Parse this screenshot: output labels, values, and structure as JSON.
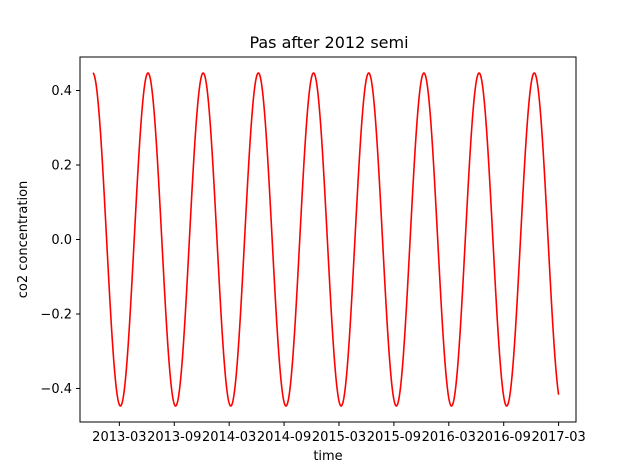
{
  "chart_data": {
    "type": "line",
    "title": "Pas after 2012 semi",
    "xlabel": "time",
    "ylabel": "co2 concentration",
    "x_tick_labels": [
      "2013-03",
      "2013-09",
      "2014-03",
      "2014-09",
      "2015-03",
      "2015-09",
      "2016-03",
      "2016-09",
      "2017-03"
    ],
    "y_tick_labels": [
      "−0.4",
      "−0.2",
      "0.0",
      "0.2",
      "0.4"
    ],
    "y_tick_values": [
      -0.4,
      -0.2,
      0.0,
      0.2,
      0.4
    ],
    "xlim_months": [
      -4.3,
      49.9
    ],
    "ylim": [
      -0.49,
      0.49
    ],
    "grid": false,
    "series": [
      {
        "name": "co2 concentration",
        "color": "#ff0000",
        "x_start_months": -2.9,
        "x_end_months": 48.0,
        "amplitude": 0.447,
        "period_months": 6.03,
        "phase_start": 0.0,
        "description_form": "amplitude * cos(2*pi*(x - x_start)/period)"
      }
    ],
    "x_origin": "2013-03"
  }
}
